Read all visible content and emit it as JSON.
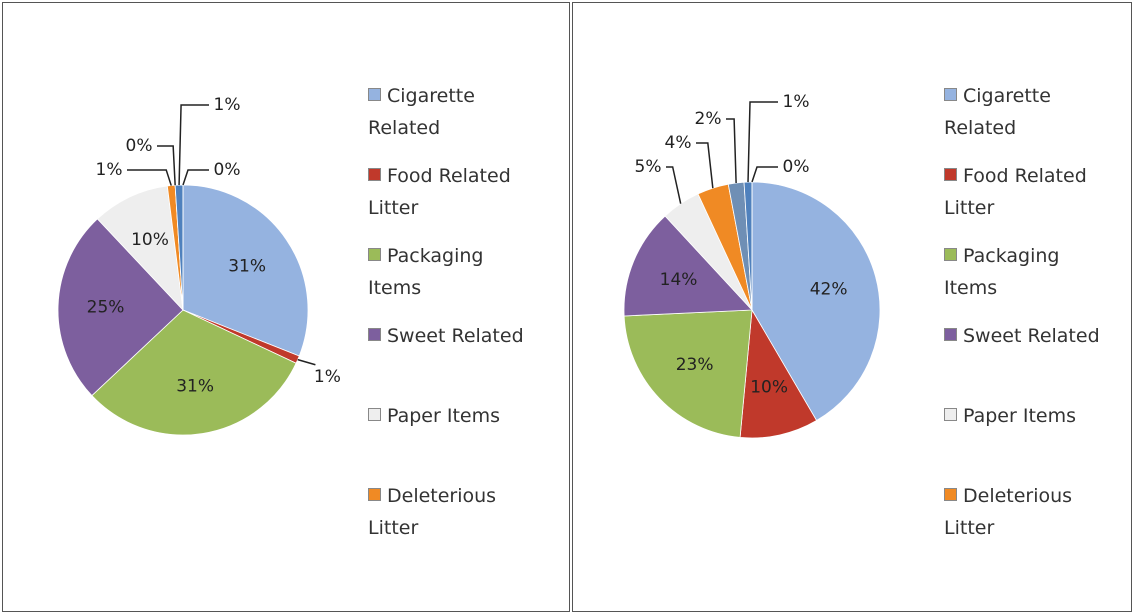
{
  "chart_data": [
    {
      "type": "pie",
      "categories": [
        "Cigarette Related",
        "Food Related Litter",
        "Packaging Items",
        "Sweet Related",
        "Paper Items",
        "Deleterious Litter",
        null,
        null,
        null
      ],
      "values": [
        31,
        1,
        31,
        25,
        10,
        1,
        0,
        1,
        0
      ],
      "value_labels": [
        "31%",
        "1%",
        "31%",
        "25%",
        "10%",
        "1%",
        "0%",
        "1%",
        "0%"
      ],
      "colors": [
        "#95b3e0",
        "#c0392b",
        "#9bbb59",
        "#7d5f9e",
        "#eeeeee",
        "#f08a24",
        "#6f8fb5",
        "#4f81bd",
        "#c0504d"
      ]
    },
    {
      "type": "pie",
      "categories": [
        "Cigarette Related",
        "Food Related Litter",
        "Packaging Items",
        "Sweet Related",
        "Paper Items",
        "Deleterious Litter",
        null,
        null,
        null
      ],
      "values": [
        42,
        10,
        23,
        14,
        5,
        4,
        2,
        1,
        0
      ],
      "value_labels": [
        "42%",
        "10%",
        "23%",
        "14%",
        "5%",
        "4%",
        "2%",
        "1%",
        "0%"
      ],
      "colors": [
        "#95b3e0",
        "#c0392b",
        "#9bbb59",
        "#7d5f9e",
        "#eeeeee",
        "#f08a24",
        "#6f8fb5",
        "#4f81bd",
        "#c0504d"
      ]
    }
  ]
}
